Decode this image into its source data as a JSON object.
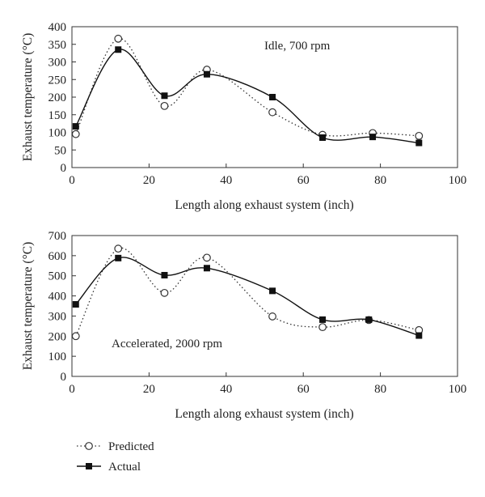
{
  "chart_data": [
    {
      "type": "line",
      "annotation": "Idle, 700 rpm",
      "xlabel": "Length along exhaust system (inch)",
      "ylabel": "Exhaust temperature (°C)",
      "xlim": [
        0,
        100
      ],
      "ylim": [
        0,
        400
      ],
      "xticks": [
        0,
        20,
        40,
        60,
        80,
        100
      ],
      "yticks": [
        0,
        50,
        100,
        150,
        200,
        250,
        300,
        350,
        400
      ],
      "grid": false,
      "series": [
        {
          "name": "Predicted",
          "style": "dotted",
          "marker": "open-circle",
          "x": [
            1,
            12,
            24,
            35,
            52,
            65,
            78,
            90
          ],
          "y": [
            95,
            366,
            175,
            278,
            157,
            93,
            98,
            90
          ]
        },
        {
          "name": "Actual",
          "style": "solid",
          "marker": "filled-square",
          "x": [
            1,
            12,
            24,
            35,
            52,
            65,
            78,
            90
          ],
          "y": [
            117,
            335,
            204,
            265,
            200,
            85,
            87,
            70
          ]
        }
      ]
    },
    {
      "type": "line",
      "annotation": "Accelerated, 2000 rpm",
      "xlabel": "Length along exhaust system (inch)",
      "ylabel": "Exhaust temperature (°C)",
      "xlim": [
        0,
        100
      ],
      "ylim": [
        0,
        700
      ],
      "xticks": [
        0,
        20,
        40,
        60,
        80,
        100
      ],
      "yticks": [
        0,
        100,
        200,
        300,
        400,
        500,
        600,
        700
      ],
      "grid": false,
      "series": [
        {
          "name": "Predicted",
          "style": "dotted",
          "marker": "open-circle",
          "x": [
            1,
            12,
            24,
            35,
            52,
            65,
            77,
            90
          ],
          "y": [
            200,
            635,
            415,
            590,
            298,
            245,
            280,
            230
          ]
        },
        {
          "name": "Actual",
          "style": "solid",
          "marker": "filled-square",
          "x": [
            1,
            12,
            24,
            35,
            52,
            65,
            77,
            90
          ],
          "y": [
            358,
            588,
            503,
            538,
            425,
            282,
            282,
            203
          ]
        }
      ]
    }
  ],
  "legend": {
    "placement": "bottom-left",
    "items": [
      {
        "label": "Predicted",
        "style": "dotted",
        "marker": "open-circle"
      },
      {
        "label": "Actual",
        "style": "solid",
        "marker": "filled-square"
      }
    ]
  }
}
